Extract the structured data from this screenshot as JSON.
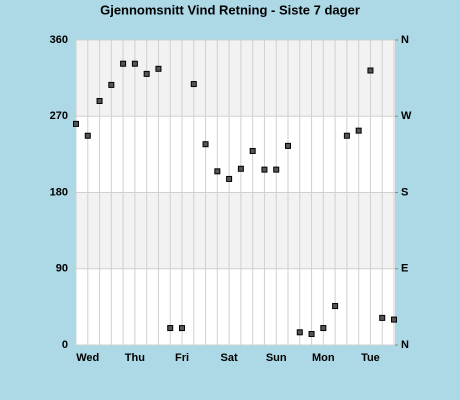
{
  "chart_data": {
    "type": "scatter",
    "title": "Gjennomsnitt Vind Retning - Siste 7 dager",
    "categories": [
      null,
      "Wed",
      null,
      null,
      null,
      "Thu",
      null,
      null,
      null,
      "Fri",
      null,
      null,
      null,
      "Sat",
      null,
      null,
      null,
      "Sun",
      null,
      null,
      null,
      "Mon",
      null,
      null,
      null,
      "Tue",
      null,
      null
    ],
    "values": [
      261,
      247,
      288,
      307,
      332,
      332,
      320,
      326,
      20,
      20,
      308,
      237,
      205,
      196,
      208,
      229,
      207,
      207,
      235,
      15,
      13,
      20,
      46,
      247,
      253,
      324,
      32,
      30
    ],
    "color": "#555555",
    "ylim": [
      0,
      360
    ],
    "yticks": [
      0,
      90,
      180,
      270,
      360
    ],
    "y2lim": [
      0,
      360
    ],
    "y2ticks": [
      {
        "value": 0,
        "label": "N"
      },
      {
        "value": 90,
        "label": "E"
      },
      {
        "value": 180,
        "label": "S"
      },
      {
        "value": 270,
        "label": "W"
      },
      {
        "value": 360,
        "label": "N"
      }
    ],
    "grid": true,
    "grid_bands": true
  }
}
